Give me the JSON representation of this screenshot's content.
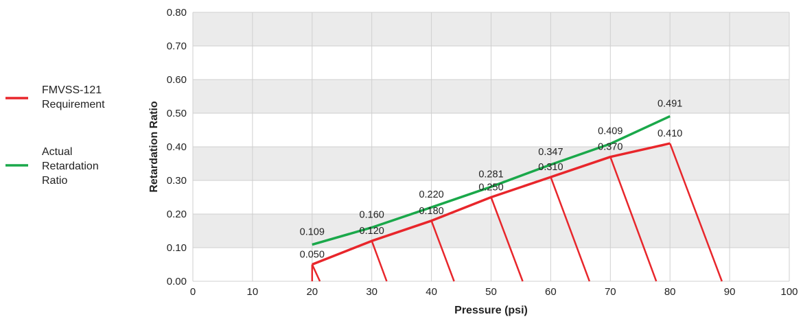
{
  "chart_data": {
    "type": "line",
    "xlabel": "Pressure (psi)",
    "ylabel": "Retardation Ratio",
    "xlim": [
      0,
      100
    ],
    "ylim": [
      0,
      0.8
    ],
    "x_ticks": [
      0,
      10,
      20,
      30,
      40,
      50,
      60,
      70,
      80,
      90,
      100
    ],
    "y_ticks": [
      "0.00",
      "0.10",
      "0.20",
      "0.30",
      "0.40",
      "0.50",
      "0.60",
      "0.70",
      "0.80"
    ],
    "grid": true,
    "legend_position": "left",
    "series": [
      {
        "name": "FMVSS-121 Requirement",
        "legend_lines": [
          "FMVSS-121",
          "Requirement"
        ],
        "color": "#e8262b",
        "x": [
          20,
          30,
          40,
          50,
          60,
          70,
          80
        ],
        "y": [
          0.05,
          0.12,
          0.18,
          0.25,
          0.31,
          0.37,
          0.41
        ],
        "labels": [
          "0.050",
          "0.120",
          "0.180",
          "0.250",
          "0.310",
          "0.370",
          "0.410"
        ],
        "drop_lines_x_at_zero": [
          21.3,
          32.5,
          43.8,
          55.3,
          66.5,
          77.7,
          88.7
        ]
      },
      {
        "name": "Actual Retardation Ratio",
        "legend_lines": [
          "Actual",
          "Retardation",
          "Ratio"
        ],
        "color": "#1aa84a",
        "x": [
          20,
          30,
          40,
          50,
          60,
          70,
          80
        ],
        "y": [
          0.109,
          0.16,
          0.22,
          0.281,
          0.347,
          0.409,
          0.491
        ],
        "labels": [
          "0.109",
          "0.160",
          "0.220",
          "0.281",
          "0.347",
          "0.409",
          "0.491"
        ]
      }
    ]
  }
}
